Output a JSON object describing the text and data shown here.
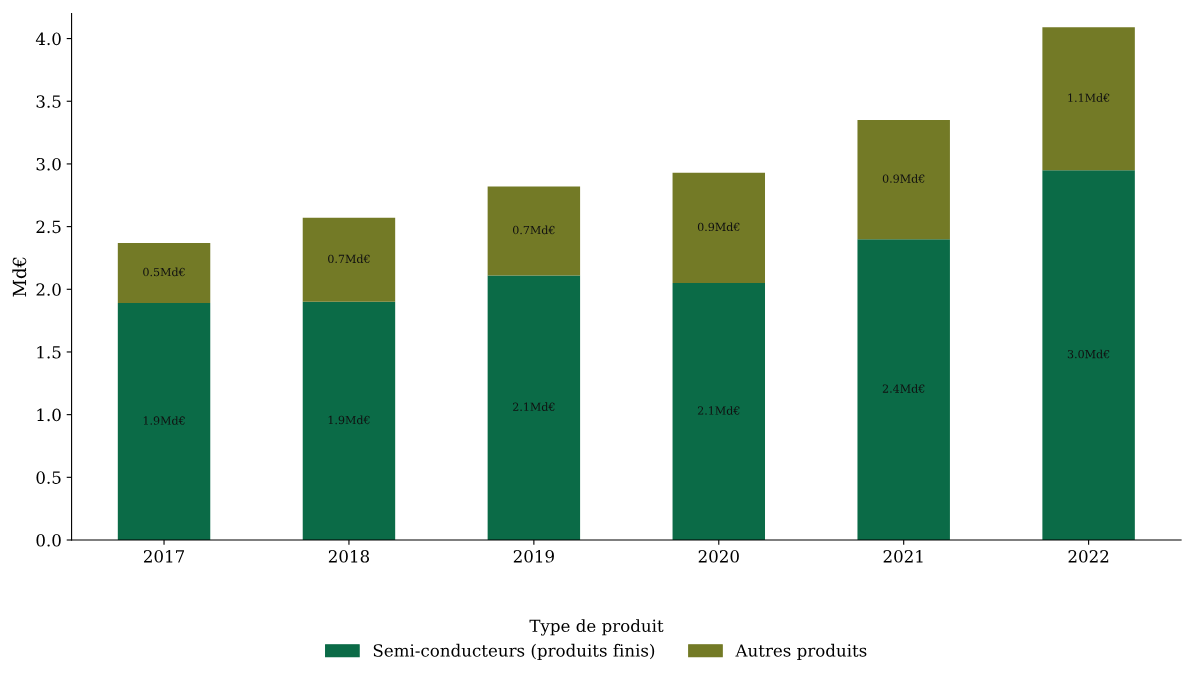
{
  "chart_data": {
    "type": "bar",
    "stacked": true,
    "ylabel": "Md€",
    "legend_title": "Type de produit",
    "legend": "bottom",
    "categories": [
      "2017",
      "2018",
      "2019",
      "2020",
      "2021",
      "2022"
    ],
    "ylim": [
      0,
      4.2
    ],
    "yticks": [
      "0.0",
      "0.5",
      "1.0",
      "1.5",
      "2.0",
      "2.5",
      "3.0",
      "3.5",
      "4.0"
    ],
    "series": [
      {
        "name": "Semi-conducteurs (produits finis)",
        "color": "#0b6b47",
        "values": [
          1.89,
          1.9,
          2.11,
          2.05,
          2.4,
          2.95
        ],
        "value_labels": [
          "1.9Md€",
          "1.9Md€",
          "2.1Md€",
          "2.1Md€",
          "2.4Md€",
          "3.0Md€"
        ]
      },
      {
        "name": "Autres produits",
        "color": "#737a26",
        "values": [
          0.48,
          0.67,
          0.71,
          0.88,
          0.95,
          1.14
        ],
        "value_labels": [
          "0.5Md€",
          "0.7Md€",
          "0.7Md€",
          "0.9Md€",
          "0.9Md€",
          "1.1Md€"
        ]
      }
    ]
  }
}
